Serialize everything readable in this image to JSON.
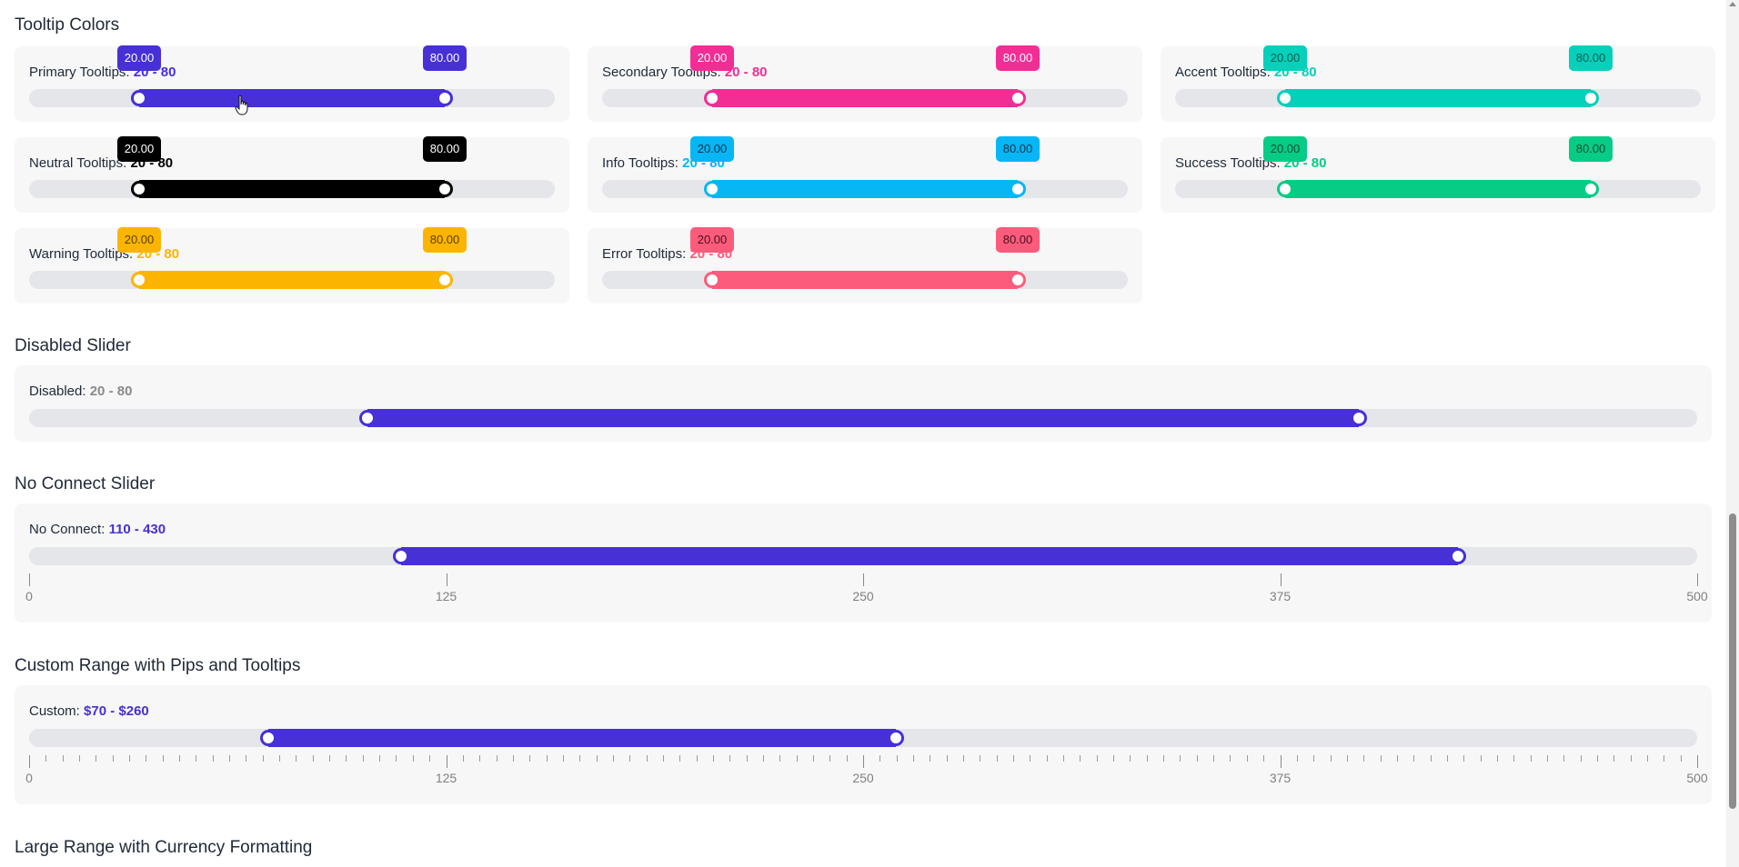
{
  "sections": {
    "tooltip_colors": "Tooltip Colors",
    "disabled": "Disabled Slider",
    "no_connect": "No Connect Slider",
    "custom": "Custom Range with Pips and Tooltips",
    "large": "Large Range with Currency Formatting"
  },
  "tooltip_sliders": [
    {
      "label": "Primary Tooltips:",
      "value": "20 - 80",
      "color": "#4630d6",
      "tip_text": "#ffffff",
      "tip_low": "20.00",
      "tip_high": "80.00",
      "low": 20,
      "high": 80
    },
    {
      "label": "Secondary Tooltips:",
      "value": "20 - 80",
      "color": "#f22e95",
      "tip_text": "#ffffff",
      "tip_low": "20.00",
      "tip_high": "80.00",
      "low": 20,
      "high": 80
    },
    {
      "label": "Accent Tooltips:",
      "value": "20 - 80",
      "color": "#05d0b9",
      "tip_text": "#145a52",
      "tip_low": "20.00",
      "tip_high": "80.00",
      "low": 20,
      "high": 80
    },
    {
      "label": "Neutral Tooltips:",
      "value": "20 - 80",
      "color": "#000000",
      "tip_text": "#ffffff",
      "tip_low": "20.00",
      "tip_high": "80.00",
      "low": 20,
      "high": 80
    },
    {
      "label": "Info Tooltips:",
      "value": "20 - 80",
      "color": "#07b6f4",
      "tip_text": "#0c3550",
      "tip_low": "20.00",
      "tip_high": "80.00",
      "low": 20,
      "high": 80
    },
    {
      "label": "Success Tooltips:",
      "value": "20 - 80",
      "color": "#06cc85",
      "tip_text": "#0f4f36",
      "tip_low": "20.00",
      "tip_high": "80.00",
      "low": 20,
      "high": 80
    },
    {
      "label": "Warning Tooltips:",
      "value": "20 - 80",
      "color": "#fbb500",
      "tip_text": "#5a4000",
      "tip_low": "20.00",
      "tip_high": "80.00",
      "low": 20,
      "high": 80
    },
    {
      "label": "Error Tooltips:",
      "value": "20 - 80",
      "color": "#fc5b7c",
      "tip_text": "#4a0f1c",
      "tip_low": "20.00",
      "tip_high": "80.00",
      "low": 20,
      "high": 80
    }
  ],
  "disabled_slider": {
    "label": "Disabled:",
    "value": "20 - 80",
    "color": "#4630d6",
    "value_color": "#8a8a8a",
    "low": 20,
    "high": 80
  },
  "no_connect_slider": {
    "label": "No Connect:",
    "value": "110 - 430",
    "color": "#4630d6",
    "min": 0,
    "max": 500,
    "low": 110,
    "high": 430,
    "pips": [
      "0",
      "125",
      "250",
      "375",
      "500"
    ]
  },
  "custom_slider": {
    "label": "Custom:",
    "value": "$70 - $260",
    "color": "#4630d6",
    "min": 0,
    "max": 500,
    "low": 70,
    "high": 260,
    "pips": [
      "0",
      "125",
      "250",
      "375",
      "500"
    ]
  }
}
